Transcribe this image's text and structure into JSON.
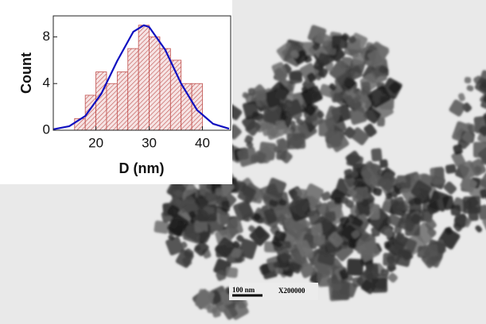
{
  "image": {
    "scale_bar": "100 nm",
    "magnification": "X200000"
  },
  "chart_data": {
    "type": "histogram",
    "x_label": "D (nm)",
    "y_label": "Count",
    "bins": [
      16,
      18,
      20,
      22,
      24,
      26,
      28,
      30,
      32,
      34,
      36,
      38,
      40
    ],
    "values": [
      1,
      3,
      5,
      4,
      5,
      7,
      9,
      8,
      7,
      6,
      4,
      4
    ],
    "color": "#c0504d",
    "fit": {
      "x": [
        12,
        15,
        18,
        21,
        24,
        27,
        29,
        30,
        33,
        36,
        39,
        42,
        45
      ],
      "values": [
        0.08,
        0.35,
        1.22,
        3.12,
        5.95,
        8.43,
        9,
        8.85,
        6.91,
        4.0,
        1.72,
        0.55,
        0.13
      ],
      "color": "#1010c0"
    },
    "xlim": [
      12,
      45.3
    ],
    "ylim": [
      0,
      9.8
    ],
    "xticks": [
      20,
      30,
      40
    ],
    "yticks": [
      0,
      4,
      8
    ]
  }
}
